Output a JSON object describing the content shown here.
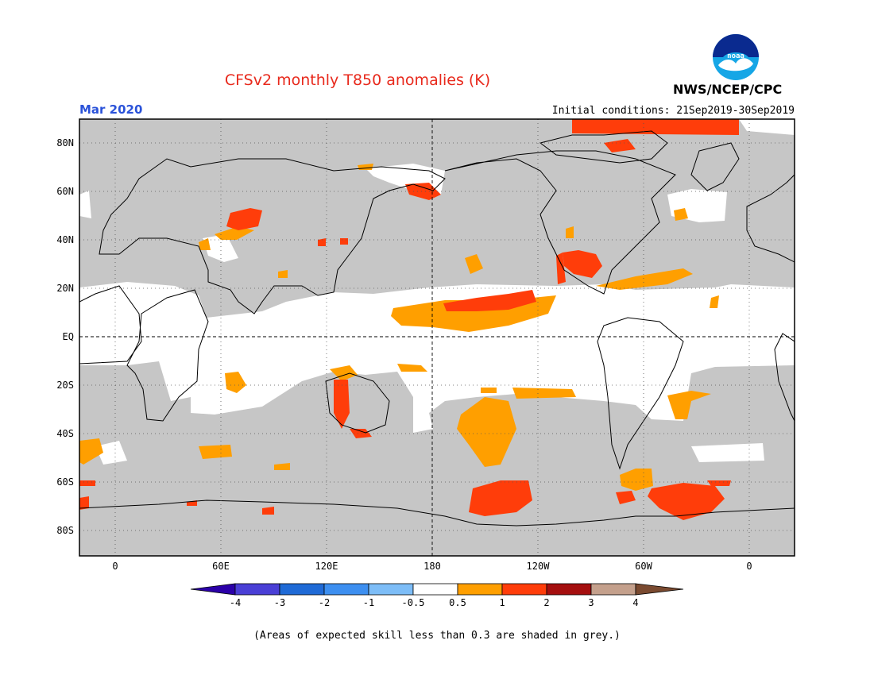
{
  "header": {
    "title": "CFSv2 monthly T850 anomalies (K)",
    "period": "Mar 2020",
    "initial_conditions": "Initial conditions: 21Sep2019-30Sep2019",
    "agency": "NWS/NCEP/CPC",
    "logo_icon": "noaa-logo-icon"
  },
  "colors": {
    "title": "#e8291c",
    "period": "#2a52d9",
    "skill_grey": "#c6c6c6",
    "neutral": "#ffffff",
    "pos_0_5_1": "#ff9f00",
    "pos_1_2": "#ff3d0a",
    "pos_2_3": "#a50f0f",
    "pos_3_4": "#c4a08c",
    "pos_gt_4": "#7a4a30"
  },
  "map": {
    "lat_labels": [
      "80N",
      "60N",
      "40N",
      "20N",
      "EQ",
      "20S",
      "40S",
      "60S",
      "80S"
    ],
    "lon_labels": [
      "0",
      "60E",
      "120E",
      "180",
      "120W",
      "60W",
      "0"
    ]
  },
  "legend": {
    "ticks": [
      "-4",
      "-3",
      "-2",
      "-1",
      "-0.5",
      "0.5",
      "1",
      "2",
      "3",
      "4"
    ],
    "colors": [
      "#2b00a8",
      "#4a3fd6",
      "#1f6ad6",
      "#3d8ff0",
      "#7dbdf7",
      "#ffffff",
      "#ff9f00",
      "#ff3d0a",
      "#a50f0f",
      "#c4a08c",
      "#7a4a30"
    ]
  },
  "footnote": "(Areas of expected skill less than 0.3 are shaded in grey.)"
}
